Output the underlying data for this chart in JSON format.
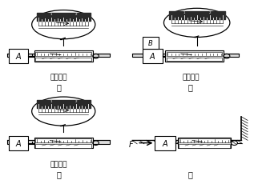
{
  "bg_color": "#ffffff",
  "panels": [
    "甲",
    "乙",
    "丙",
    "丁"
  ],
  "surface_labels": [
    "棉布表面",
    "棉布表面",
    "毛巾表面",
    ""
  ],
  "font_main": 7,
  "font_sub": 7
}
